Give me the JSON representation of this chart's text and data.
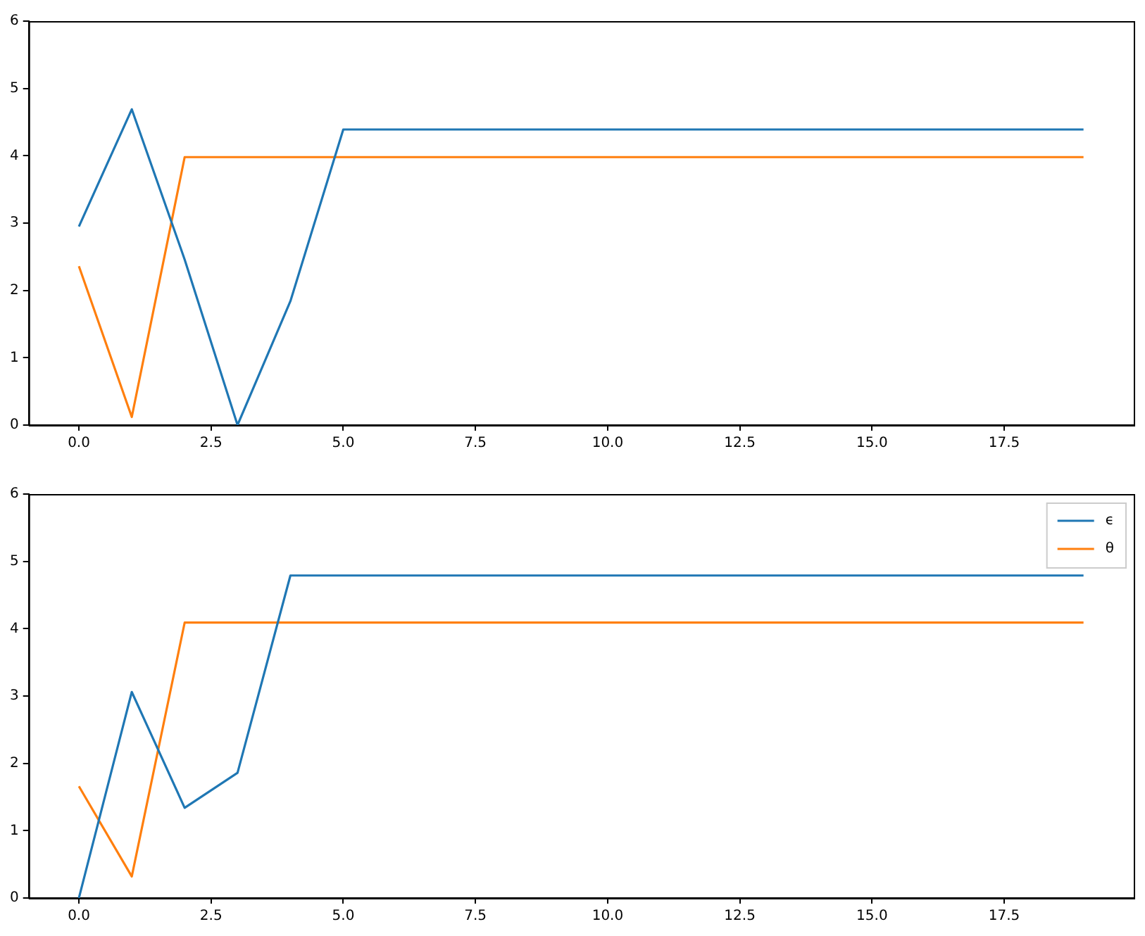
{
  "chart_data": [
    {
      "type": "line",
      "x": [
        0,
        1,
        2,
        3,
        4,
        5,
        6,
        7,
        8,
        9,
        10,
        11,
        12,
        13,
        14,
        15,
        16,
        17,
        18,
        19
      ],
      "series": [
        {
          "color": "#1f77b4",
          "values": [
            2.95,
            4.69,
            2.46,
            0,
            1.84,
            4.39,
            4.39,
            4.39,
            4.39,
            4.39,
            4.39,
            4.39,
            4.39,
            4.39,
            4.39,
            4.39,
            4.39,
            4.39,
            4.39,
            4.39
          ]
        },
        {
          "color": "#ff7f0e",
          "values": [
            2.36,
            0.12,
            3.98,
            3.98,
            3.98,
            3.98,
            3.98,
            3.98,
            3.98,
            3.98,
            3.98,
            3.98,
            3.98,
            3.98,
            3.98,
            3.98,
            3.98,
            3.98,
            3.98,
            3.98
          ]
        }
      ],
      "xlim": [
        -0.95,
        19.95
      ],
      "xticks": [
        {
          "value": 0,
          "label": "0.0"
        },
        {
          "value": 2.5,
          "label": "2.5"
        },
        {
          "value": 5,
          "label": "5.0"
        },
        {
          "value": 7.5,
          "label": "7.5"
        },
        {
          "value": 10,
          "label": "10.0"
        },
        {
          "value": 12.5,
          "label": "12.5"
        },
        {
          "value": 15,
          "label": "15.0"
        },
        {
          "value": 17.5,
          "label": "17.5"
        }
      ],
      "ylim": [
        0,
        6
      ],
      "yticks": [
        0,
        1,
        2,
        3,
        4,
        5,
        6
      ],
      "grid": false,
      "legend": false,
      "marker": "none",
      "line_style": "solid"
    },
    {
      "type": "line",
      "x": [
        0,
        1,
        2,
        3,
        4,
        5,
        6,
        7,
        8,
        9,
        10,
        11,
        12,
        13,
        14,
        15,
        16,
        17,
        18,
        19
      ],
      "series": [
        {
          "name": "ϵ",
          "color": "#1f77b4",
          "values": [
            0,
            3.06,
            1.34,
            1.86,
            4.79,
            4.79,
            4.79,
            4.79,
            4.79,
            4.79,
            4.79,
            4.79,
            4.79,
            4.79,
            4.79,
            4.79,
            4.79,
            4.79,
            4.79,
            4.79
          ]
        },
        {
          "name": "θ",
          "color": "#ff7f0e",
          "values": [
            1.66,
            0.32,
            4.09,
            4.09,
            4.09,
            4.09,
            4.09,
            4.09,
            4.09,
            4.09,
            4.09,
            4.09,
            4.09,
            4.09,
            4.09,
            4.09,
            4.09,
            4.09,
            4.09,
            4.09
          ]
        }
      ],
      "xlim": [
        -0.95,
        19.95
      ],
      "xticks": [
        {
          "value": 0,
          "label": "0.0"
        },
        {
          "value": 2.5,
          "label": "2.5"
        },
        {
          "value": 5,
          "label": "5.0"
        },
        {
          "value": 7.5,
          "label": "7.5"
        },
        {
          "value": 10,
          "label": "10.0"
        },
        {
          "value": 12.5,
          "label": "12.5"
        },
        {
          "value": 15,
          "label": "15.0"
        },
        {
          "value": 17.5,
          "label": "17.5"
        }
      ],
      "ylim": [
        0,
        6
      ],
      "yticks": [
        0,
        1,
        2,
        3,
        4,
        5,
        6
      ],
      "grid": false,
      "legend": "top right",
      "marker": "none",
      "line_style": "solid"
    }
  ]
}
